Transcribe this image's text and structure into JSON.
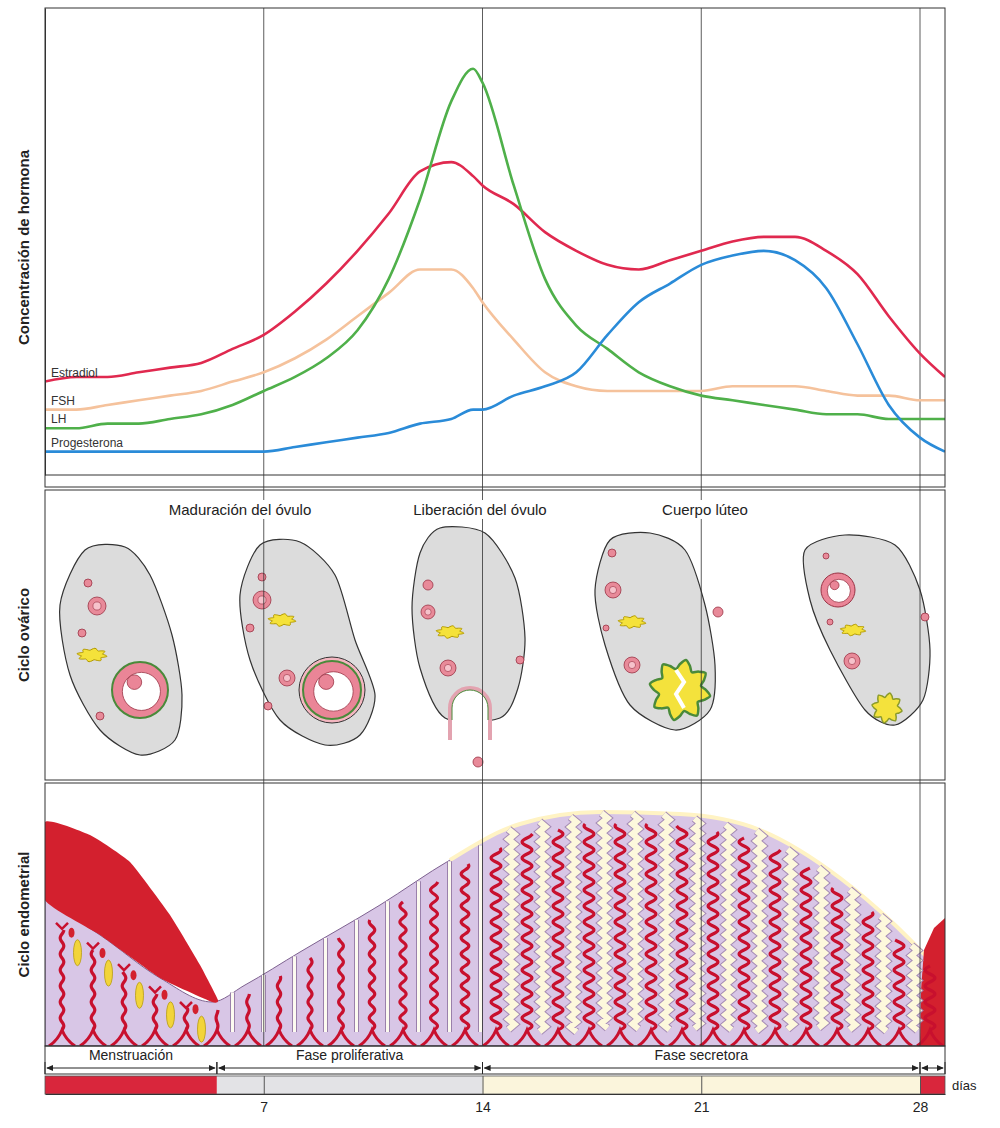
{
  "chart_data": {
    "type": "line",
    "y_label": "Concentración de hormona",
    "x_label": "días",
    "x": [
      0,
      1,
      2,
      3,
      4,
      5,
      6,
      7,
      8,
      9,
      10,
      11,
      12,
      13,
      13.7,
      14,
      15,
      16,
      17,
      18,
      19,
      20,
      21,
      22,
      23,
      24,
      25,
      26,
      27,
      28,
      28.8
    ],
    "xlim": [
      0,
      28.8
    ],
    "xticks": [
      7,
      14,
      21,
      28
    ],
    "ylim": [
      0,
      100
    ],
    "tick_labels": "x",
    "grid": true,
    "series": [
      {
        "name": "Estradiol",
        "color": "#e0294f",
        "values": [
          20,
          21,
          21,
          22,
          23,
          24,
          27,
          30,
          35,
          41,
          48,
          56,
          65,
          67,
          64,
          62,
          58,
          52,
          48,
          45,
          44,
          46,
          48,
          50,
          51,
          51,
          48,
          43,
          34,
          26,
          21
        ]
      },
      {
        "name": "FSH",
        "color": "#f5c29c",
        "values": [
          14,
          14,
          15,
          16,
          17,
          18,
          20,
          22,
          25,
          29,
          34,
          39,
          44,
          44,
          40,
          37,
          29,
          22,
          19,
          18,
          18,
          18,
          18,
          19,
          19,
          19,
          18,
          17,
          17,
          16,
          16
        ]
      },
      {
        "name": "LH",
        "color": "#4fb04a",
        "values": [
          10,
          10,
          11,
          11,
          12,
          13,
          15,
          18,
          21,
          25,
          31,
          42,
          59,
          80,
          87,
          84,
          62,
          42,
          32,
          27,
          22,
          19,
          17,
          16,
          15,
          14,
          13,
          13,
          12,
          12,
          12
        ]
      },
      {
        "name": "Progesterona",
        "color": "#2a8bd8",
        "values": [
          5,
          5,
          5,
          5,
          5,
          5,
          5,
          5,
          6,
          7,
          8,
          9,
          11,
          12,
          14,
          14,
          17,
          19,
          22,
          30,
          37,
          41,
          45,
          47,
          48,
          46,
          40,
          28,
          15,
          8,
          5
        ]
      }
    ]
  },
  "ovarian_cycle": {
    "label": "Ciclo ovárico",
    "stages": [
      "Maduración del óvulo",
      "Liberación del óvulo",
      "Cuerpo lúteo"
    ]
  },
  "endometrial_cycle": {
    "label": "Ciclo endometrial"
  },
  "phases": [
    {
      "name": "Menstruación",
      "start": 0,
      "end": 5.5,
      "color": "#d9263c"
    },
    {
      "name": "Fase proliferativa",
      "start": 5.5,
      "end": 14,
      "color": "#e3e3e6"
    },
    {
      "name": "Fase secretora",
      "start": 14,
      "end": 28,
      "color": "#fbf5dc"
    },
    {
      "name": null,
      "start": 28,
      "end": 28.8,
      "color": "#d9263c"
    }
  ]
}
